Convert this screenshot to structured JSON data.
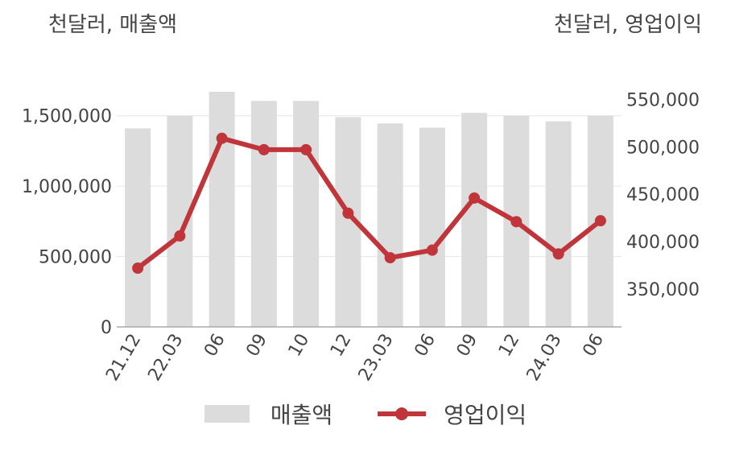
{
  "units": {
    "left": "천달러, 매출액",
    "right": "천달러, 영업이익"
  },
  "legend": {
    "bar_label": "매출액",
    "line_label": "영업이익"
  },
  "colors": {
    "bar": "#dcdcdc",
    "line": "#c0353a",
    "axis_text": "#444444",
    "grid": "#e6e6e6",
    "axis_line": "#aaaaaa"
  },
  "chart_data": {
    "type": "bar+line",
    "categories": [
      "21.12",
      "22.03",
      "06",
      "09",
      "10",
      "12",
      "23.03",
      "06",
      "09",
      "12",
      "24.03",
      "06"
    ],
    "series": [
      {
        "name": "매출액",
        "type": "bar",
        "axis": "left",
        "values": [
          1410000,
          1500000,
          1670000,
          1605000,
          1605000,
          1490000,
          1445000,
          1415000,
          1520000,
          1500000,
          1460000,
          1500000
        ]
      },
      {
        "name": "영업이익",
        "type": "line",
        "axis": "right",
        "values": [
          372000,
          406000,
          509000,
          497000,
          497000,
          430000,
          383000,
          391000,
          446000,
          421000,
          387000,
          422000
        ]
      }
    ],
    "y_left": {
      "ylim": [
        0,
        1750000
      ],
      "ticks": [
        0,
        500000,
        1000000,
        1500000
      ],
      "tick_labels": [
        "0",
        "500,000",
        "1,000,000",
        "1,500,000"
      ]
    },
    "y_right": {
      "ylim": [
        310000,
        570000
      ],
      "ticks": [
        350000,
        400000,
        450000,
        500000,
        550000
      ],
      "tick_labels": [
        "350,000",
        "400,000",
        "450,000",
        "500,000",
        "550,000"
      ]
    },
    "grid": true,
    "legend_position": "bottom"
  }
}
